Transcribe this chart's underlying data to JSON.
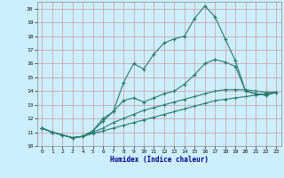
{
  "title": "",
  "xlabel": "Humidex (Indice chaleur)",
  "bg_color": "#cceeff",
  "grid_color": "#cc9999",
  "line_color": "#2a7a6a",
  "xlim": [
    -0.5,
    23.5
  ],
  "ylim": [
    10.0,
    20.5
  ],
  "xticks": [
    0,
    1,
    2,
    3,
    4,
    5,
    6,
    7,
    8,
    9,
    10,
    11,
    12,
    13,
    14,
    15,
    16,
    17,
    18,
    19,
    20,
    21,
    22,
    23
  ],
  "yticks": [
    10,
    11,
    12,
    13,
    14,
    15,
    16,
    17,
    18,
    19,
    20
  ],
  "line1_x": [
    0,
    1,
    2,
    3,
    4,
    5,
    6,
    7,
    8,
    9,
    10,
    11,
    12,
    13,
    14,
    15,
    16,
    17,
    18,
    19,
    20,
    21,
    22,
    23
  ],
  "line1_y": [
    11.3,
    11.0,
    10.8,
    10.6,
    10.7,
    11.1,
    12.0,
    12.5,
    14.6,
    16.0,
    15.6,
    16.7,
    17.5,
    17.8,
    18.0,
    19.3,
    20.2,
    19.4,
    17.8,
    16.2,
    14.0,
    13.8,
    13.7,
    13.9
  ],
  "line2_x": [
    0,
    1,
    2,
    3,
    4,
    5,
    6,
    7,
    8,
    9,
    10,
    11,
    12,
    13,
    14,
    15,
    16,
    17,
    18,
    19,
    20,
    21,
    22,
    23
  ],
  "line2_y": [
    11.3,
    11.0,
    10.8,
    10.6,
    10.7,
    11.1,
    11.8,
    12.5,
    13.3,
    13.5,
    13.2,
    13.5,
    13.8,
    14.0,
    14.5,
    15.2,
    16.0,
    16.3,
    16.1,
    15.8,
    14.0,
    13.8,
    13.7,
    13.9
  ],
  "line3_x": [
    0,
    1,
    2,
    3,
    4,
    5,
    6,
    7,
    8,
    9,
    10,
    11,
    12,
    13,
    14,
    15,
    16,
    17,
    18,
    19,
    20,
    21,
    22,
    23
  ],
  "line3_y": [
    11.3,
    11.0,
    10.8,
    10.6,
    10.7,
    11.0,
    11.3,
    11.7,
    12.0,
    12.3,
    12.6,
    12.8,
    13.0,
    13.2,
    13.4,
    13.6,
    13.8,
    14.0,
    14.1,
    14.1,
    14.1,
    14.0,
    13.9,
    13.9
  ],
  "line4_x": [
    0,
    1,
    2,
    3,
    4,
    5,
    6,
    7,
    8,
    9,
    10,
    11,
    12,
    13,
    14,
    15,
    16,
    17,
    18,
    19,
    20,
    21,
    22,
    23
  ],
  "line4_y": [
    11.3,
    11.0,
    10.8,
    10.6,
    10.7,
    10.9,
    11.1,
    11.3,
    11.5,
    11.7,
    11.9,
    12.1,
    12.3,
    12.5,
    12.7,
    12.9,
    13.1,
    13.3,
    13.4,
    13.5,
    13.6,
    13.7,
    13.8,
    13.9
  ]
}
